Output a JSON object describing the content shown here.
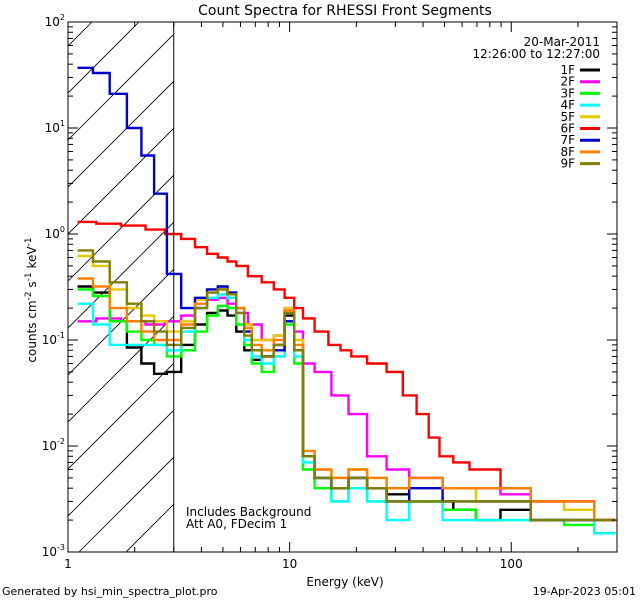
{
  "chart_data": {
    "type": "line",
    "title": "Count Spectra for RHESSI Front Segments",
    "xlabel": "Energy (keV)",
    "ylabel_parts": [
      "counts cm",
      "-2",
      " s",
      "-1",
      " keV",
      "-1"
    ],
    "xscale": "log",
    "yscale": "log",
    "xlim": [
      1,
      300
    ],
    "ylim": [
      0.001,
      100
    ],
    "x_tick_labels": [
      {
        "value": 1,
        "label": "1"
      },
      {
        "value": 10,
        "label": "10"
      },
      {
        "value": 100,
        "label": "100"
      }
    ],
    "y_tick_labels": [
      {
        "value": 0.001,
        "base": "10",
        "exp": "-3"
      },
      {
        "value": 0.01,
        "base": "10",
        "exp": "-2"
      },
      {
        "value": 0.1,
        "base": "10",
        "exp": "-1"
      },
      {
        "value": 1,
        "base": "10",
        "exp": "0"
      },
      {
        "value": 10,
        "base": "10",
        "exp": "1"
      },
      {
        "value": 100,
        "base": "10",
        "exp": "2"
      }
    ],
    "excluded_region": {
      "from": 1,
      "to": 3,
      "style": "diagonal-hatch"
    },
    "date": "20-Mar-2011",
    "time_range": "12:26:00 to 12:27:00",
    "annotations": [
      "Includes Background",
      "Att A0, FDecim 1"
    ],
    "series": [
      {
        "name": "1F",
        "color": "#000000",
        "points": [
          [
            1.2,
            0.32
          ],
          [
            1.4,
            0.28
          ],
          [
            1.7,
            0.15
          ],
          [
            2.0,
            0.085
          ],
          [
            2.3,
            0.06
          ],
          [
            2.6,
            0.048
          ],
          [
            3.0,
            0.05
          ],
          [
            3.5,
            0.09
          ],
          [
            4.0,
            0.14
          ],
          [
            4.5,
            0.18
          ],
          [
            5.0,
            0.19
          ],
          [
            5.5,
            0.17
          ],
          [
            6.0,
            0.12
          ],
          [
            6.5,
            0.08
          ],
          [
            7.0,
            0.065
          ],
          [
            8.0,
            0.07
          ],
          [
            9.0,
            0.09
          ],
          [
            10.0,
            0.17
          ],
          [
            11.0,
            0.08
          ],
          [
            12.0,
            0.008
          ],
          [
            14.0,
            0.005
          ],
          [
            17.0,
            0.004
          ],
          [
            20.0,
            0.005
          ],
          [
            25.0,
            0.004
          ],
          [
            30.0,
            0.0035
          ],
          [
            40.0,
            0.003
          ],
          [
            50.0,
            0.003
          ],
          [
            60.0,
            0.0025
          ],
          [
            80.0,
            0.002
          ],
          [
            100.0,
            0.0025
          ],
          [
            150.0,
            0.002
          ],
          [
            200.0,
            0.002
          ],
          [
            280.0,
            0.0015
          ]
        ]
      },
      {
        "name": "2F",
        "color": "#ff00ff",
        "points": [
          [
            1.2,
            0.15
          ],
          [
            1.5,
            0.16
          ],
          [
            2.0,
            0.15
          ],
          [
            2.5,
            0.14
          ],
          [
            3.0,
            0.15
          ],
          [
            3.5,
            0.17
          ],
          [
            4.0,
            0.2
          ],
          [
            4.5,
            0.24
          ],
          [
            5.0,
            0.25
          ],
          [
            5.5,
            0.22
          ],
          [
            6.0,
            0.18
          ],
          [
            7.0,
            0.14
          ],
          [
            8.0,
            0.1
          ],
          [
            9.0,
            0.11
          ],
          [
            10.0,
            0.2
          ],
          [
            11.0,
            0.12
          ],
          [
            12.0,
            0.06
          ],
          [
            14.0,
            0.05
          ],
          [
            17.0,
            0.03
          ],
          [
            20.0,
            0.02
          ],
          [
            25.0,
            0.008
          ],
          [
            30.0,
            0.006
          ],
          [
            40.0,
            0.005
          ],
          [
            60.0,
            0.004
          ],
          [
            80.0,
            0.004
          ],
          [
            100.0,
            0.0035
          ],
          [
            150.0,
            0.003
          ],
          [
            200.0,
            0.003
          ],
          [
            280.0,
            0.002
          ]
        ]
      },
      {
        "name": "3F",
        "color": "#00ff00",
        "points": [
          [
            1.2,
            0.3
          ],
          [
            1.4,
            0.26
          ],
          [
            1.7,
            0.15
          ],
          [
            2.0,
            0.12
          ],
          [
            2.3,
            0.1
          ],
          [
            2.6,
            0.09
          ],
          [
            3.0,
            0.07
          ],
          [
            3.5,
            0.08
          ],
          [
            4.0,
            0.12
          ],
          [
            4.5,
            0.17
          ],
          [
            5.0,
            0.21
          ],
          [
            5.5,
            0.2
          ],
          [
            6.0,
            0.14
          ],
          [
            6.5,
            0.09
          ],
          [
            7.0,
            0.06
          ],
          [
            8.0,
            0.05
          ],
          [
            9.0,
            0.07
          ],
          [
            10.0,
            0.14
          ],
          [
            11.0,
            0.06
          ],
          [
            12.0,
            0.006
          ],
          [
            14.0,
            0.004
          ],
          [
            17.0,
            0.003
          ],
          [
            20.0,
            0.004
          ],
          [
            25.0,
            0.003
          ],
          [
            30.0,
            0.003
          ],
          [
            40.0,
            0.003
          ],
          [
            60.0,
            0.0025
          ],
          [
            80.0,
            0.002
          ],
          [
            100.0,
            0.002
          ],
          [
            150.0,
            0.002
          ],
          [
            200.0,
            0.0018
          ],
          [
            280.0,
            0.0015
          ]
        ]
      },
      {
        "name": "4F",
        "color": "#00ffff",
        "points": [
          [
            1.2,
            0.22
          ],
          [
            1.4,
            0.14
          ],
          [
            1.7,
            0.09
          ],
          [
            2.0,
            0.09
          ],
          [
            2.3,
            0.09
          ],
          [
            2.6,
            0.09
          ],
          [
            3.0,
            0.08
          ],
          [
            3.5,
            0.12
          ],
          [
            4.0,
            0.2
          ],
          [
            4.5,
            0.25
          ],
          [
            5.0,
            0.27
          ],
          [
            5.5,
            0.25
          ],
          [
            6.0,
            0.18
          ],
          [
            6.5,
            0.1
          ],
          [
            7.0,
            0.07
          ],
          [
            8.0,
            0.06
          ],
          [
            9.0,
            0.07
          ],
          [
            10.0,
            0.15
          ],
          [
            11.0,
            0.07
          ],
          [
            12.0,
            0.007
          ],
          [
            14.0,
            0.005
          ],
          [
            17.0,
            0.003
          ],
          [
            20.0,
            0.004
          ],
          [
            25.0,
            0.003
          ],
          [
            30.0,
            0.002
          ],
          [
            40.0,
            0.003
          ],
          [
            60.0,
            0.002
          ],
          [
            80.0,
            0.002
          ],
          [
            100.0,
            0.002
          ],
          [
            150.0,
            0.002
          ],
          [
            200.0,
            0.002
          ],
          [
            280.0,
            0.0015
          ]
        ]
      },
      {
        "name": "5F",
        "color": "#e6c800",
        "points": [
          [
            1.2,
            0.62
          ],
          [
            1.4,
            0.5
          ],
          [
            1.7,
            0.3
          ],
          [
            2.0,
            0.2
          ],
          [
            2.3,
            0.17
          ],
          [
            2.6,
            0.15
          ],
          [
            3.0,
            0.12
          ],
          [
            3.5,
            0.15
          ],
          [
            4.0,
            0.24
          ],
          [
            4.5,
            0.3
          ],
          [
            5.0,
            0.32
          ],
          [
            5.5,
            0.28
          ],
          [
            6.0,
            0.2
          ],
          [
            6.5,
            0.14
          ],
          [
            7.0,
            0.1
          ],
          [
            8.0,
            0.1
          ],
          [
            9.0,
            0.11
          ],
          [
            10.0,
            0.2
          ],
          [
            11.0,
            0.1
          ],
          [
            12.0,
            0.008
          ],
          [
            14.0,
            0.006
          ],
          [
            17.0,
            0.005
          ],
          [
            20.0,
            0.006
          ],
          [
            25.0,
            0.005
          ],
          [
            30.0,
            0.004
          ],
          [
            40.0,
            0.004
          ],
          [
            60.0,
            0.004
          ],
          [
            80.0,
            0.003
          ],
          [
            100.0,
            0.003
          ],
          [
            150.0,
            0.003
          ],
          [
            200.0,
            0.0025
          ],
          [
            280.0,
            0.002
          ]
        ]
      },
      {
        "name": "6F",
        "color": "#ff0000",
        "points": [
          [
            1.2,
            1.3
          ],
          [
            1.5,
            1.25
          ],
          [
            2.0,
            1.2
          ],
          [
            2.5,
            1.1
          ],
          [
            3.0,
            1.0
          ],
          [
            3.5,
            0.9
          ],
          [
            4.0,
            0.75
          ],
          [
            4.5,
            0.65
          ],
          [
            5.0,
            0.6
          ],
          [
            5.5,
            0.55
          ],
          [
            6.0,
            0.5
          ],
          [
            7.0,
            0.4
          ],
          [
            8.0,
            0.35
          ],
          [
            9.0,
            0.3
          ],
          [
            10.0,
            0.25
          ],
          [
            11.0,
            0.2
          ],
          [
            12.0,
            0.16
          ],
          [
            14.0,
            0.12
          ],
          [
            16.0,
            0.09
          ],
          [
            18.0,
            0.08
          ],
          [
            20.0,
            0.07
          ],
          [
            25.0,
            0.06
          ],
          [
            30.0,
            0.05
          ],
          [
            35.0,
            0.03
          ],
          [
            40.0,
            0.02
          ],
          [
            45.0,
            0.012
          ],
          [
            50.0,
            0.008
          ],
          [
            60.0,
            0.007
          ],
          [
            70.0,
            0.006
          ],
          [
            80.0,
            0.006
          ],
          [
            100.0,
            0.004
          ],
          [
            150.0,
            0.003
          ],
          [
            200.0,
            0.003
          ],
          [
            280.0,
            0.002
          ]
        ]
      },
      {
        "name": "7F",
        "color": "#0000cc",
        "points": [
          [
            1.2,
            37
          ],
          [
            1.4,
            33
          ],
          [
            1.7,
            21
          ],
          [
            2.0,
            10
          ],
          [
            2.3,
            5.5
          ],
          [
            2.6,
            2.4
          ],
          [
            3.0,
            0.42
          ],
          [
            3.5,
            0.2
          ],
          [
            4.0,
            0.25
          ],
          [
            4.5,
            0.3
          ],
          [
            5.0,
            0.32
          ],
          [
            5.5,
            0.28
          ],
          [
            6.0,
            0.2
          ],
          [
            6.5,
            0.12
          ],
          [
            7.0,
            0.08
          ],
          [
            8.0,
            0.07
          ],
          [
            9.0,
            0.08
          ],
          [
            10.0,
            0.15
          ],
          [
            11.0,
            0.08
          ],
          [
            12.0,
            0.008
          ],
          [
            14.0,
            0.005
          ],
          [
            17.0,
            0.004
          ],
          [
            20.0,
            0.005
          ],
          [
            25.0,
            0.004
          ],
          [
            30.0,
            0.003
          ],
          [
            40.0,
            0.004
          ],
          [
            60.0,
            0.003
          ],
          [
            80.0,
            0.003
          ],
          [
            100.0,
            0.003
          ],
          [
            150.0,
            0.002
          ],
          [
            200.0,
            0.002
          ],
          [
            280.0,
            0.002
          ]
        ]
      },
      {
        "name": "8F",
        "color": "#ff8000",
        "points": [
          [
            1.2,
            0.38
          ],
          [
            1.4,
            0.32
          ],
          [
            1.7,
            0.2
          ],
          [
            2.0,
            0.15
          ],
          [
            2.3,
            0.12
          ],
          [
            2.6,
            0.1
          ],
          [
            3.0,
            0.1
          ],
          [
            3.5,
            0.14
          ],
          [
            4.0,
            0.22
          ],
          [
            4.5,
            0.28
          ],
          [
            5.0,
            0.3
          ],
          [
            5.5,
            0.27
          ],
          [
            6.0,
            0.2
          ],
          [
            6.5,
            0.13
          ],
          [
            7.0,
            0.09
          ],
          [
            8.0,
            0.08
          ],
          [
            9.0,
            0.1
          ],
          [
            10.0,
            0.19
          ],
          [
            11.0,
            0.09
          ],
          [
            12.0,
            0.009
          ],
          [
            14.0,
            0.006
          ],
          [
            17.0,
            0.005
          ],
          [
            20.0,
            0.006
          ],
          [
            25.0,
            0.005
          ],
          [
            30.0,
            0.004
          ],
          [
            40.0,
            0.005
          ],
          [
            60.0,
            0.004
          ],
          [
            80.0,
            0.004
          ],
          [
            100.0,
            0.004
          ],
          [
            150.0,
            0.003
          ],
          [
            200.0,
            0.003
          ],
          [
            280.0,
            0.002
          ]
        ]
      },
      {
        "name": "9F",
        "color": "#808000",
        "points": [
          [
            1.2,
            0.7
          ],
          [
            1.4,
            0.55
          ],
          [
            1.7,
            0.35
          ],
          [
            2.0,
            0.22
          ],
          [
            2.3,
            0.15
          ],
          [
            2.6,
            0.12
          ],
          [
            3.0,
            0.09
          ],
          [
            3.5,
            0.13
          ],
          [
            4.0,
            0.2
          ],
          [
            4.5,
            0.28
          ],
          [
            5.0,
            0.3
          ],
          [
            5.5,
            0.27
          ],
          [
            6.0,
            0.18
          ],
          [
            6.5,
            0.11
          ],
          [
            7.0,
            0.08
          ],
          [
            8.0,
            0.07
          ],
          [
            9.0,
            0.09
          ],
          [
            10.0,
            0.18
          ],
          [
            11.0,
            0.08
          ],
          [
            12.0,
            0.008
          ],
          [
            14.0,
            0.005
          ],
          [
            17.0,
            0.004
          ],
          [
            20.0,
            0.005
          ],
          [
            25.0,
            0.004
          ],
          [
            30.0,
            0.003
          ],
          [
            40.0,
            0.003
          ],
          [
            60.0,
            0.003
          ],
          [
            80.0,
            0.003
          ],
          [
            100.0,
            0.003
          ],
          [
            150.0,
            0.002
          ],
          [
            200.0,
            0.002
          ],
          [
            280.0,
            0.002
          ]
        ]
      }
    ]
  },
  "footer": {
    "generated_by": "Generated by hsi_min_spectra_plot.pro",
    "date": "19-Apr-2023 05:01"
  }
}
